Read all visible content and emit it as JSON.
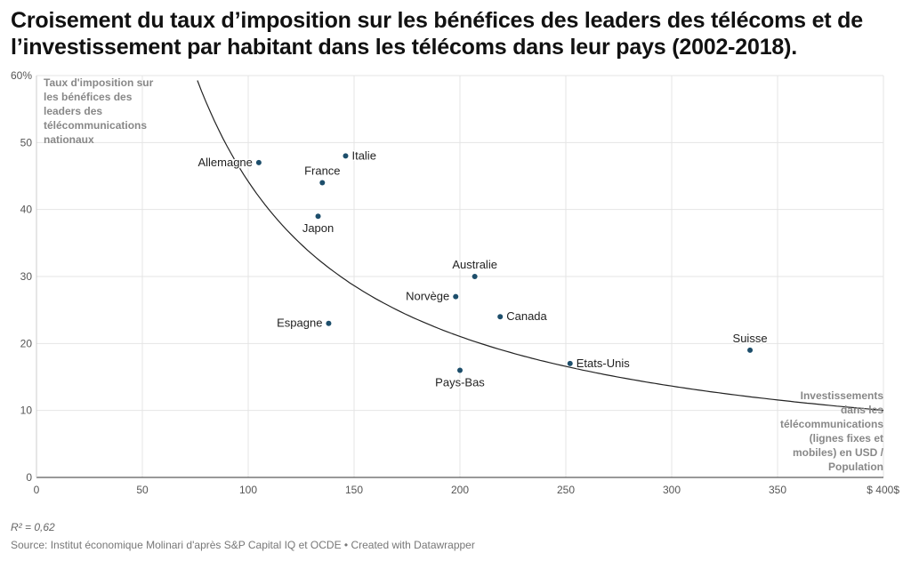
{
  "title": "Croisement du taux d’imposition sur les bénéfices des leaders des télécoms et de l’investissement par habitant dans les télécoms dans leur pays (2002-2018).",
  "r_squared": "R² = 0,62",
  "source": "Source: Institut économique Molinari d'après S&P Capital IQ et OCDE • Created with Datawrapper",
  "chart_data": {
    "type": "scatter",
    "xlim": [
      0,
      400
    ],
    "ylim": [
      0,
      60
    ],
    "x_ticks": [
      {
        "value": 0,
        "label": "0"
      },
      {
        "value": 50,
        "label": "50"
      },
      {
        "value": 100,
        "label": "100"
      },
      {
        "value": 150,
        "label": "150"
      },
      {
        "value": 200,
        "label": "200"
      },
      {
        "value": 250,
        "label": "250"
      },
      {
        "value": 300,
        "label": "300"
      },
      {
        "value": 350,
        "label": "350"
      },
      {
        "value": 400,
        "label": "$ 400$"
      }
    ],
    "y_ticks": [
      {
        "value": 0,
        "label": "0"
      },
      {
        "value": 10,
        "label": "10"
      },
      {
        "value": 20,
        "label": "20"
      },
      {
        "value": 30,
        "label": "30"
      },
      {
        "value": 40,
        "label": "40"
      },
      {
        "value": 50,
        "label": "50"
      },
      {
        "value": 60,
        "label": "60%"
      }
    ],
    "grid": true,
    "ylabel": [
      "Taux d'imposition sur",
      "les bénéfices des",
      "leaders des",
      "télécommunications",
      "nationaux"
    ],
    "xlabel": [
      "Investissements",
      "dans les",
      "télécommunications",
      "(lignes fixes et",
      "mobiles) en USD /",
      "Population"
    ],
    "point_color": "#1d4e6b",
    "trendline": {
      "type": "power",
      "a": 6100,
      "b": -1.07
    },
    "points": [
      {
        "label": "Allemagne",
        "x": 105,
        "y": 47,
        "label_pos": "left"
      },
      {
        "label": "Italie",
        "x": 146,
        "y": 48,
        "label_pos": "right"
      },
      {
        "label": "France",
        "x": 135,
        "y": 44,
        "label_pos": "above"
      },
      {
        "label": "Japon",
        "x": 133,
        "y": 39,
        "label_pos": "below"
      },
      {
        "label": "Australie",
        "x": 207,
        "y": 30,
        "label_pos": "above"
      },
      {
        "label": "Norvège",
        "x": 198,
        "y": 27,
        "label_pos": "left"
      },
      {
        "label": "Canada",
        "x": 219,
        "y": 24,
        "label_pos": "right"
      },
      {
        "label": "Espagne",
        "x": 138,
        "y": 23,
        "label_pos": "left"
      },
      {
        "label": "Suisse",
        "x": 337,
        "y": 19,
        "label_pos": "above"
      },
      {
        "label": "Etats-Unis",
        "x": 252,
        "y": 17,
        "label_pos": "right"
      },
      {
        "label": "Pays-Bas",
        "x": 200,
        "y": 16,
        "label_pos": "below"
      }
    ]
  }
}
